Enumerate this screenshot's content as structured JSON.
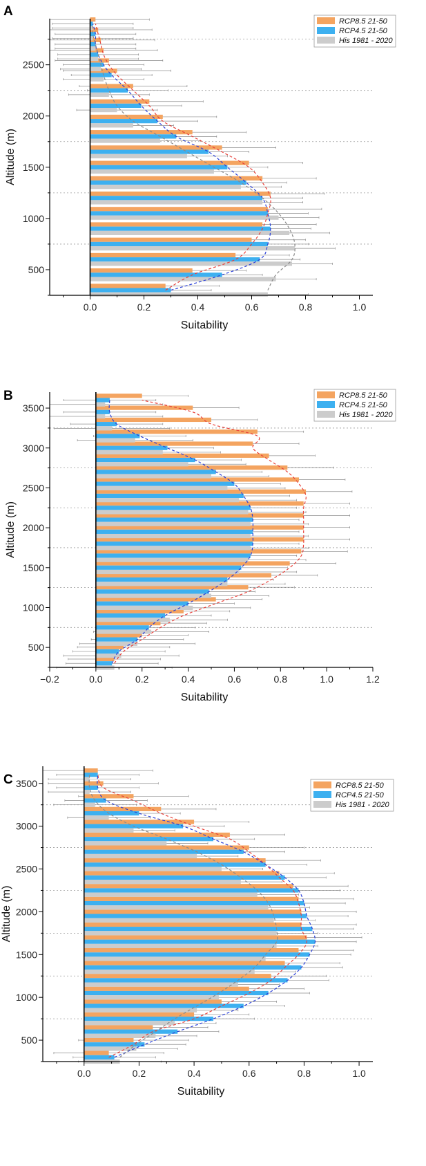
{
  "chart_data": [
    {
      "panel": "A",
      "type": "bar",
      "orientation": "horizontal",
      "xlabel": "Suitability",
      "ylabel": "Altitude (m)",
      "xlim": [
        -0.15,
        1.05
      ],
      "ylim": [
        250,
        2950
      ],
      "xticks": [
        0.0,
        0.2,
        0.4,
        0.6,
        0.8,
        1.0
      ],
      "xtick_labels": [
        "0.0",
        "0.2",
        "0.4",
        "0.6",
        "0.8",
        "1.0"
      ],
      "yticks": [
        500,
        1000,
        1500,
        2000,
        2500
      ],
      "ytick_labels": [
        "500",
        "1000",
        "1500",
        "2000",
        "2500"
      ],
      "altitudes": [
        300,
        450,
        600,
        750,
        900,
        1050,
        1200,
        1350,
        1500,
        1650,
        1800,
        1950,
        2100,
        2250,
        2400,
        2500,
        2600,
        2700,
        2800,
        2900
      ],
      "band_boundaries": [
        250,
        750,
        1250,
        1750,
        2250,
        2750
      ],
      "legend": [
        "RCP8.5 21-50",
        "RCP4.5 21-50",
        "His 1981 - 2020"
      ],
      "series": [
        {
          "name": "RCP8.5 21-50",
          "color": "#f4a460",
          "values": [
            0.28,
            0.38,
            0.54,
            0.6,
            0.64,
            0.66,
            0.67,
            0.64,
            0.59,
            0.49,
            0.38,
            0.27,
            0.22,
            0.16,
            0.1,
            0.07,
            0.05,
            0.04,
            0.03,
            0.02
          ]
        },
        {
          "name": "RCP4.5 21-50",
          "color": "#3db0f0",
          "values": [
            0.3,
            0.49,
            0.63,
            0.66,
            0.67,
            0.66,
            0.64,
            0.58,
            0.51,
            0.44,
            0.32,
            0.25,
            0.19,
            0.14,
            0.08,
            0.05,
            0.03,
            0.02,
            0.02,
            0.01
          ]
        },
        {
          "name": "His 1981 - 2020",
          "color": "#cccccc",
          "values": [
            0.66,
            0.69,
            0.75,
            0.76,
            0.74,
            0.7,
            0.64,
            0.56,
            0.46,
            0.36,
            0.26,
            0.16,
            0.1,
            0.07,
            0.05,
            0.04,
            0.03,
            0.02,
            0.01,
            0.01
          ]
        }
      ],
      "errors": [
        0.2,
        0.15,
        0.15
      ],
      "curve_series": [
        "RCP8.5 21-50",
        "RCP4.5 21-50",
        "His 1981 - 2020"
      ],
      "curve_colors": [
        "#e8403a",
        "#2a3fd8",
        "#8a8a8a"
      ]
    },
    {
      "panel": "B",
      "type": "bar",
      "orientation": "horizontal",
      "xlabel": "Suitability",
      "ylabel": "Altitude (m)",
      "xlim": [
        -0.2,
        1.2
      ],
      "ylim": [
        250,
        3700
      ],
      "xticks": [
        -0.2,
        0.0,
        0.2,
        0.4,
        0.6,
        0.8,
        1.0,
        1.2
      ],
      "xtick_labels": [
        "−0.2",
        "0.0",
        "0.2",
        "0.4",
        "0.6",
        "0.8",
        "1.0",
        "1.2"
      ],
      "yticks": [
        500,
        1000,
        1500,
        2000,
        2500,
        3000,
        3500
      ],
      "ytick_labels": [
        "500",
        "1000",
        "1500",
        "2000",
        "2500",
        "3000",
        "3500"
      ],
      "altitudes": [
        300,
        450,
        600,
        750,
        900,
        1050,
        1200,
        1350,
        1500,
        1650,
        1800,
        1950,
        2100,
        2250,
        2400,
        2550,
        2700,
        2850,
        3000,
        3150,
        3300,
        3450,
        3600
      ],
      "band_boundaries": [
        750,
        1250,
        1750,
        2250,
        2750,
        3250
      ],
      "legend": [
        "RCP8.5 21-50",
        "RCP4.5 21-50",
        "His 1981 - 2020"
      ],
      "series": [
        {
          "name": "RCP8.5 21-50",
          "color": "#f4a460",
          "values": [
            0.08,
            0.12,
            0.2,
            0.28,
            0.38,
            0.52,
            0.66,
            0.76,
            0.84,
            0.89,
            0.9,
            0.9,
            0.9,
            0.9,
            0.91,
            0.88,
            0.83,
            0.75,
            0.68,
            0.7,
            0.5,
            0.42,
            0.2
          ]
        },
        {
          "name": "RCP4.5 21-50",
          "color": "#3db0f0",
          "values": [
            0.07,
            0.1,
            0.18,
            0.23,
            0.3,
            0.4,
            0.49,
            0.57,
            0.63,
            0.67,
            0.68,
            0.68,
            0.68,
            0.67,
            0.64,
            0.6,
            0.52,
            0.43,
            0.31,
            0.19,
            0.09,
            0.06,
            0.06
          ]
        },
        {
          "name": "His 1981 - 2020",
          "color": "#cccccc",
          "values": [
            0.08,
            0.11,
            0.18,
            0.24,
            0.32,
            0.42,
            0.5,
            0.57,
            0.62,
            0.66,
            0.67,
            0.67,
            0.67,
            0.66,
            0.62,
            0.57,
            0.5,
            0.4,
            0.29,
            0.17,
            0.07,
            0.04,
            0.04
          ]
        }
      ],
      "errors": [
        0.2,
        0.2,
        0.25
      ],
      "curve_series": [
        "RCP8.5 21-50",
        "RCP4.5 21-50"
      ],
      "curve_colors": [
        "#e8403a",
        "#2a3fd8"
      ]
    },
    {
      "panel": "C",
      "type": "bar",
      "orientation": "horizontal",
      "xlabel": "Suitability",
      "ylabel": "Altitude (m)",
      "xlim": [
        -0.15,
        1.05
      ],
      "ylim": [
        250,
        3700
      ],
      "xticks": [
        0.0,
        0.2,
        0.4,
        0.6,
        0.8,
        1.0
      ],
      "xtick_labels": [
        "0.0",
        "0.2",
        "0.4",
        "0.6",
        "0.8",
        "1.0"
      ],
      "yticks": [
        500,
        1000,
        1500,
        2000,
        2500,
        3000,
        3500
      ],
      "ytick_labels": [
        "500",
        "1000",
        "1500",
        "2000",
        "2500",
        "3000",
        "3500"
      ],
      "altitudes": [
        300,
        450,
        600,
        750,
        900,
        1050,
        1200,
        1350,
        1500,
        1650,
        1800,
        1950,
        2100,
        2250,
        2400,
        2550,
        2700,
        2850,
        3000,
        3150,
        3300,
        3450,
        3600
      ],
      "band_boundaries": [
        750,
        1250,
        1750,
        2250,
        2750,
        3250
      ],
      "legend": [
        "RCP8.5 21-50",
        "RCP4.5 21-50",
        "His 1981 - 2020"
      ],
      "series": [
        {
          "name": "RCP8.5 21-50",
          "color": "#f4a460",
          "values": [
            0.09,
            0.18,
            0.25,
            0.4,
            0.5,
            0.6,
            0.68,
            0.73,
            0.78,
            0.81,
            0.79,
            0.79,
            0.78,
            0.76,
            0.71,
            0.66,
            0.6,
            0.53,
            0.4,
            0.28,
            0.18,
            0.07,
            0.05
          ]
        },
        {
          "name": "RCP4.5 21-50",
          "color": "#3db0f0",
          "values": [
            0.11,
            0.22,
            0.34,
            0.47,
            0.58,
            0.67,
            0.74,
            0.79,
            0.82,
            0.84,
            0.83,
            0.81,
            0.8,
            0.78,
            0.73,
            0.66,
            0.58,
            0.47,
            0.36,
            0.2,
            0.08,
            0.05,
            0.05
          ]
        },
        {
          "name": "His 1981 - 2020",
          "color": "#cccccc",
          "values": [
            0.13,
            0.19,
            0.26,
            0.33,
            0.41,
            0.49,
            0.56,
            0.62,
            0.66,
            0.7,
            0.7,
            0.69,
            0.67,
            0.63,
            0.57,
            0.5,
            0.41,
            0.3,
            0.18,
            0.09,
            0.04,
            0.02,
            0.02
          ]
        }
      ],
      "errors": [
        0.2,
        0.15,
        0.15
      ],
      "curve_series": [
        "RCP8.5 21-50",
        "RCP4.5 21-50",
        "His 1981 - 2020"
      ],
      "curve_colors": [
        "#e8403a",
        "#2a3fd8",
        "#8a8a8a"
      ]
    }
  ]
}
